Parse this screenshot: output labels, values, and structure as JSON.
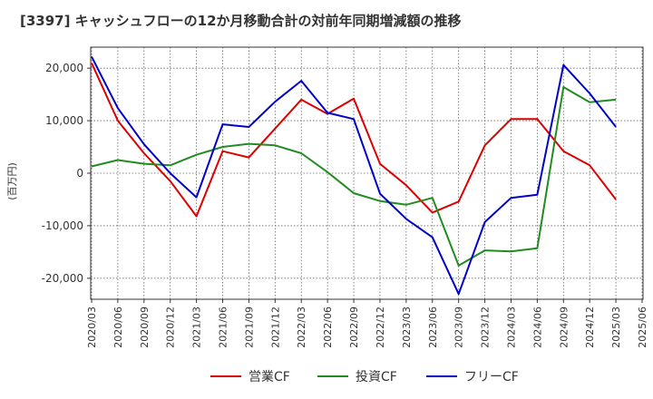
{
  "chart_data": {
    "type": "line",
    "title": "[3397]  キャッシュフローの12か月移動合計の対前年同期増減額の推移",
    "ylabel": "(百万円)",
    "xlabel": "",
    "ylim": [
      -24000,
      24000
    ],
    "yticks": [
      20000,
      10000,
      0,
      -10000,
      -20000
    ],
    "ytick_labels": [
      "20,000",
      "10,000",
      "0",
      "-10,000",
      "-20,000"
    ],
    "categories": [
      "2020/03",
      "2020/06",
      "2020/09",
      "2020/12",
      "2021/03",
      "2021/06",
      "2021/09",
      "2021/12",
      "2022/03",
      "2022/06",
      "2022/09",
      "2022/12",
      "2023/03",
      "2023/06",
      "2023/09",
      "2023/12",
      "2024/03",
      "2024/06",
      "2024/09",
      "2024/12",
      "2025/03",
      "2025/06"
    ],
    "grid": true,
    "legend_position": "bottom-center",
    "series": [
      {
        "name": "営業CF",
        "color": "#dd0000",
        "values": [
          21000,
          10000,
          3800,
          -1500,
          -8200,
          4200,
          3000,
          8500,
          14000,
          11300,
          14200,
          1800,
          -2300,
          -7500,
          -5400,
          5300,
          10300,
          10300,
          4200,
          1500,
          -5000,
          null
        ]
      },
      {
        "name": "投資CF",
        "color": "#228B22",
        "values": [
          1300,
          2500,
          1800,
          1500,
          3500,
          5000,
          5600,
          5300,
          3800,
          200,
          -3800,
          -5300,
          -6000,
          -4700,
          -17600,
          -14700,
          -14900,
          -14300,
          16400,
          13500,
          14000,
          null
        ]
      },
      {
        "name": "フリーCF",
        "color": "#0000cc",
        "values": [
          22200,
          12400,
          5500,
          0,
          -4600,
          9300,
          8800,
          13600,
          17600,
          11500,
          10300,
          -3900,
          -8700,
          -12200,
          -23000,
          -9300,
          -4700,
          -4100,
          20600,
          15200,
          8800,
          null
        ]
      }
    ]
  }
}
